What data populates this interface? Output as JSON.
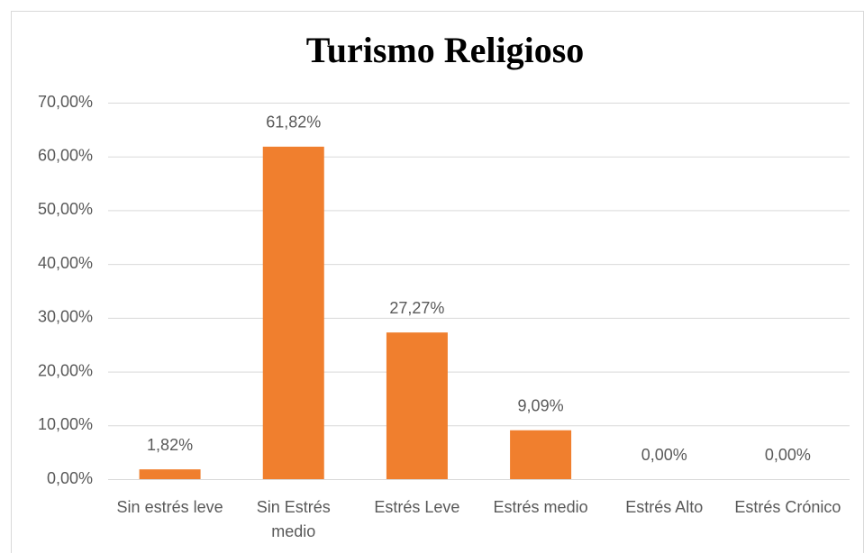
{
  "chart_data": {
    "type": "bar",
    "title": "Turismo Religioso",
    "categories": [
      "Sin estrés leve",
      "Sin Estrés medio",
      "Estrés Leve",
      "Estrés medio",
      "Estrés Alto",
      "Estrés Crónico"
    ],
    "values": [
      1.82,
      61.82,
      27.27,
      9.09,
      0,
      0
    ],
    "value_labels": [
      "1,82%",
      "61,82%",
      "27,27%",
      "9,09%",
      "0,00%",
      "0,00%"
    ],
    "color": "#f07f2e",
    "ylim": [
      0,
      70
    ],
    "yticks": [
      {
        "value": 0,
        "label": "0,00%"
      },
      {
        "value": 10,
        "label": "10,00%"
      },
      {
        "value": 20,
        "label": "20,00%"
      },
      {
        "value": 30,
        "label": "30,00%"
      },
      {
        "value": 40,
        "label": "40,00%"
      },
      {
        "value": 50,
        "label": "50,00%"
      },
      {
        "value": 60,
        "label": "60,00%"
      },
      {
        "value": 70,
        "label": "70,00%"
      }
    ],
    "grid": true
  }
}
